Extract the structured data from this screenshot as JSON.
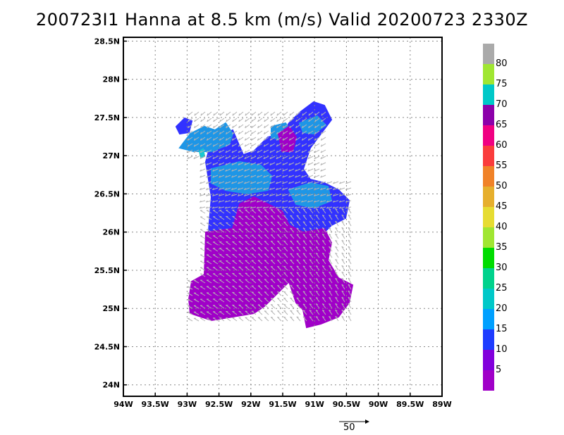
{
  "title": "200723I1  Hanna at 8.5 km (m/s) Valid 20200723  2330Z",
  "map": {
    "lat_ticks": [
      "28.5N",
      "28N",
      "27.5N",
      "27N",
      "26.5N",
      "26N",
      "25.5N",
      "25N",
      "24.5N",
      "24N"
    ],
    "lon_ticks": [
      "94W",
      "93.5W",
      "93W",
      "92.5W",
      "92W",
      "91.5W",
      "91W",
      "90.5W",
      "90W",
      "89.5W",
      "89W"
    ],
    "lat_range": [
      23.85,
      28.55
    ],
    "lon_range": [
      -94.0,
      -89.0
    ],
    "grid": true
  },
  "colorbar": {
    "labels": [
      "5",
      "10",
      "15",
      "20",
      "25",
      "30",
      "35",
      "40",
      "45",
      "50",
      "55",
      "60",
      "65",
      "70",
      "75",
      "80"
    ],
    "colors": [
      "#a000c8",
      "#8200dc",
      "#1e3cff",
      "#00a0ff",
      "#00c8c8",
      "#00d28c",
      "#00dc00",
      "#a0e632",
      "#e6dc32",
      "#e6af2d",
      "#f08228",
      "#fa3c3c",
      "#f00082",
      "#8c00aa",
      "#00c8c8",
      "#a0e632",
      "#aaaaaa"
    ]
  },
  "reference_vector": {
    "label": "50"
  },
  "wind_field": {
    "regions": [
      {
        "name": "southern core",
        "speed_ms": 5,
        "color": "#a000c8"
      },
      {
        "name": "central band",
        "speed_ms": 10,
        "color": "#3232ff"
      },
      {
        "name": "northern patches",
        "speed_ms": 15,
        "color": "#1e96e6"
      },
      {
        "name": "isolated patches",
        "speed_ms": 20,
        "color": "#19c8d2"
      }
    ]
  }
}
